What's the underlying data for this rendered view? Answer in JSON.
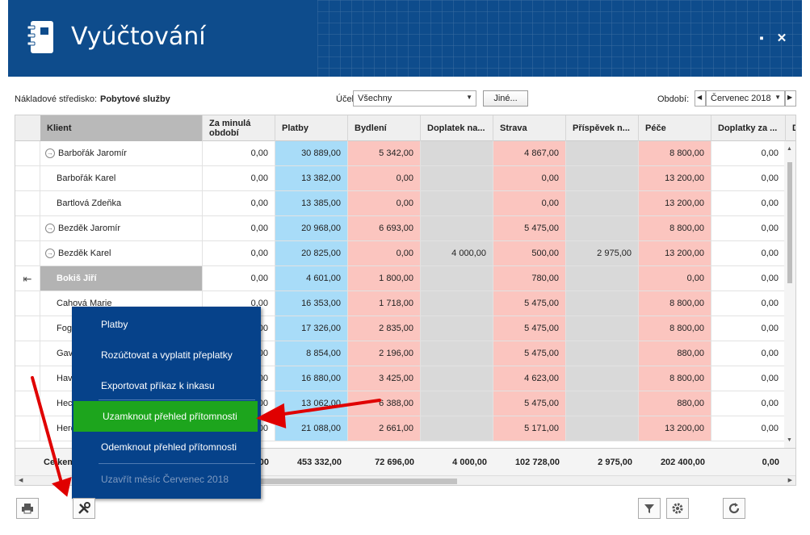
{
  "window": {
    "title": "Vyúčtování",
    "restore_glyph": "▪",
    "close_glyph": "✕"
  },
  "filters": {
    "cost_center_label": "Nákladové středisko:",
    "cost_center_value": "Pobytové služby",
    "purpose_label": "Účel:",
    "purpose_value": "Všechny",
    "other_button": "Jiné...",
    "period_label": "Období:",
    "period_value": "Červenec 2018"
  },
  "table": {
    "headers": [
      "Klient",
      "Za minulá\nobdobí",
      "Platby",
      "Bydlení",
      "Doplatek na...",
      "Strava",
      "Příspěvek n...",
      "Péče",
      "Doplatky za ...",
      "D"
    ],
    "rows": [
      {
        "name": "Barbořák Jaromír",
        "icon": true,
        "values": [
          "0,00",
          "30 889,00",
          "5 342,00",
          "",
          "4 867,00",
          "",
          "8 800,00",
          "0,00"
        ]
      },
      {
        "name": "Barbořák Karel",
        "icon": false,
        "values": [
          "0,00",
          "13 382,00",
          "0,00",
          "",
          "0,00",
          "",
          "13 200,00",
          "0,00"
        ]
      },
      {
        "name": "Bartlová Zdeňka",
        "icon": false,
        "values": [
          "0,00",
          "13 385,00",
          "0,00",
          "",
          "0,00",
          "",
          "13 200,00",
          "0,00"
        ]
      },
      {
        "name": "Bezděk Jaromír",
        "icon": true,
        "values": [
          "0,00",
          "20 968,00",
          "6 693,00",
          "",
          "5 475,00",
          "",
          "8 800,00",
          "0,00"
        ]
      },
      {
        "name": "Bezděk Karel",
        "icon": true,
        "values": [
          "0,00",
          "20 825,00",
          "0,00",
          "4 000,00",
          "500,00",
          "2 975,00",
          "13 200,00",
          "0,00"
        ]
      },
      {
        "name": "Bokiš Jiří",
        "icon": false,
        "selected": true,
        "values": [
          "0,00",
          "4 601,00",
          "1 800,00",
          "",
          "780,00",
          "",
          "0,00",
          "0,00"
        ]
      },
      {
        "name": "Cahová Marie",
        "icon": false,
        "values": [
          "0,00",
          "16 353,00",
          "1 718,00",
          "",
          "5 475,00",
          "",
          "8 800,00",
          "0,00"
        ]
      },
      {
        "name": "Fog",
        "icon": false,
        "values": [
          "0,00",
          "17 326,00",
          "2 835,00",
          "",
          "5 475,00",
          "",
          "8 800,00",
          "0,00"
        ]
      },
      {
        "name": "Gav",
        "icon": false,
        "values": [
          "0,00",
          "8 854,00",
          "2 196,00",
          "",
          "5 475,00",
          "",
          "880,00",
          "0,00"
        ]
      },
      {
        "name": "Hav",
        "icon": false,
        "values": [
          "0,00",
          "16 880,00",
          "3 425,00",
          "",
          "4 623,00",
          "",
          "8 800,00",
          "0,00"
        ]
      },
      {
        "name": "Hec",
        "icon": false,
        "values": [
          "0,00",
          "13 062,00",
          "6 388,00",
          "",
          "5 475,00",
          "",
          "880,00",
          "0,00"
        ]
      },
      {
        "name": "Herd",
        "icon": false,
        "values": [
          "0,00",
          "21 088,00",
          "2 661,00",
          "",
          "5 171,00",
          "",
          "13 200,00",
          "0,00"
        ]
      }
    ],
    "footer": {
      "label": "Celkem",
      "values": [
        ",00",
        "453 332,00",
        "72 696,00",
        "4 000,00",
        "102 728,00",
        "2 975,00",
        "202 400,00",
        "0,00"
      ]
    }
  },
  "context_menu": {
    "items": [
      {
        "label": "Platby",
        "state": "normal"
      },
      {
        "label": "Rozúčtovat a vyplatit přeplatky",
        "state": "normal"
      },
      {
        "label": "Exportovat příkaz k inkasu",
        "state": "normal"
      },
      {
        "label": "Uzamknout přehled přítomnosti",
        "state": "active"
      },
      {
        "label": "Odemknout přehled přítomnosti",
        "state": "normal"
      },
      {
        "label": "Uzavřít měsíc Červenec 2018",
        "state": "disabled"
      }
    ]
  },
  "colors": {
    "header": "#0e4c8c",
    "menu": "#06428a",
    "menu_active": "#1da51d",
    "payments": "#a8dcf8",
    "costs": "#fbc5bf",
    "empty": "#d9d9d9",
    "annotation_arrow": "#e00000"
  },
  "bottom_toolbar": {
    "print_icon": "printer-icon",
    "tools_icon": "tools-icon",
    "filter_icon": "filter-icon",
    "settings_icon": "gear-icon",
    "refresh_icon": "refresh-icon"
  }
}
